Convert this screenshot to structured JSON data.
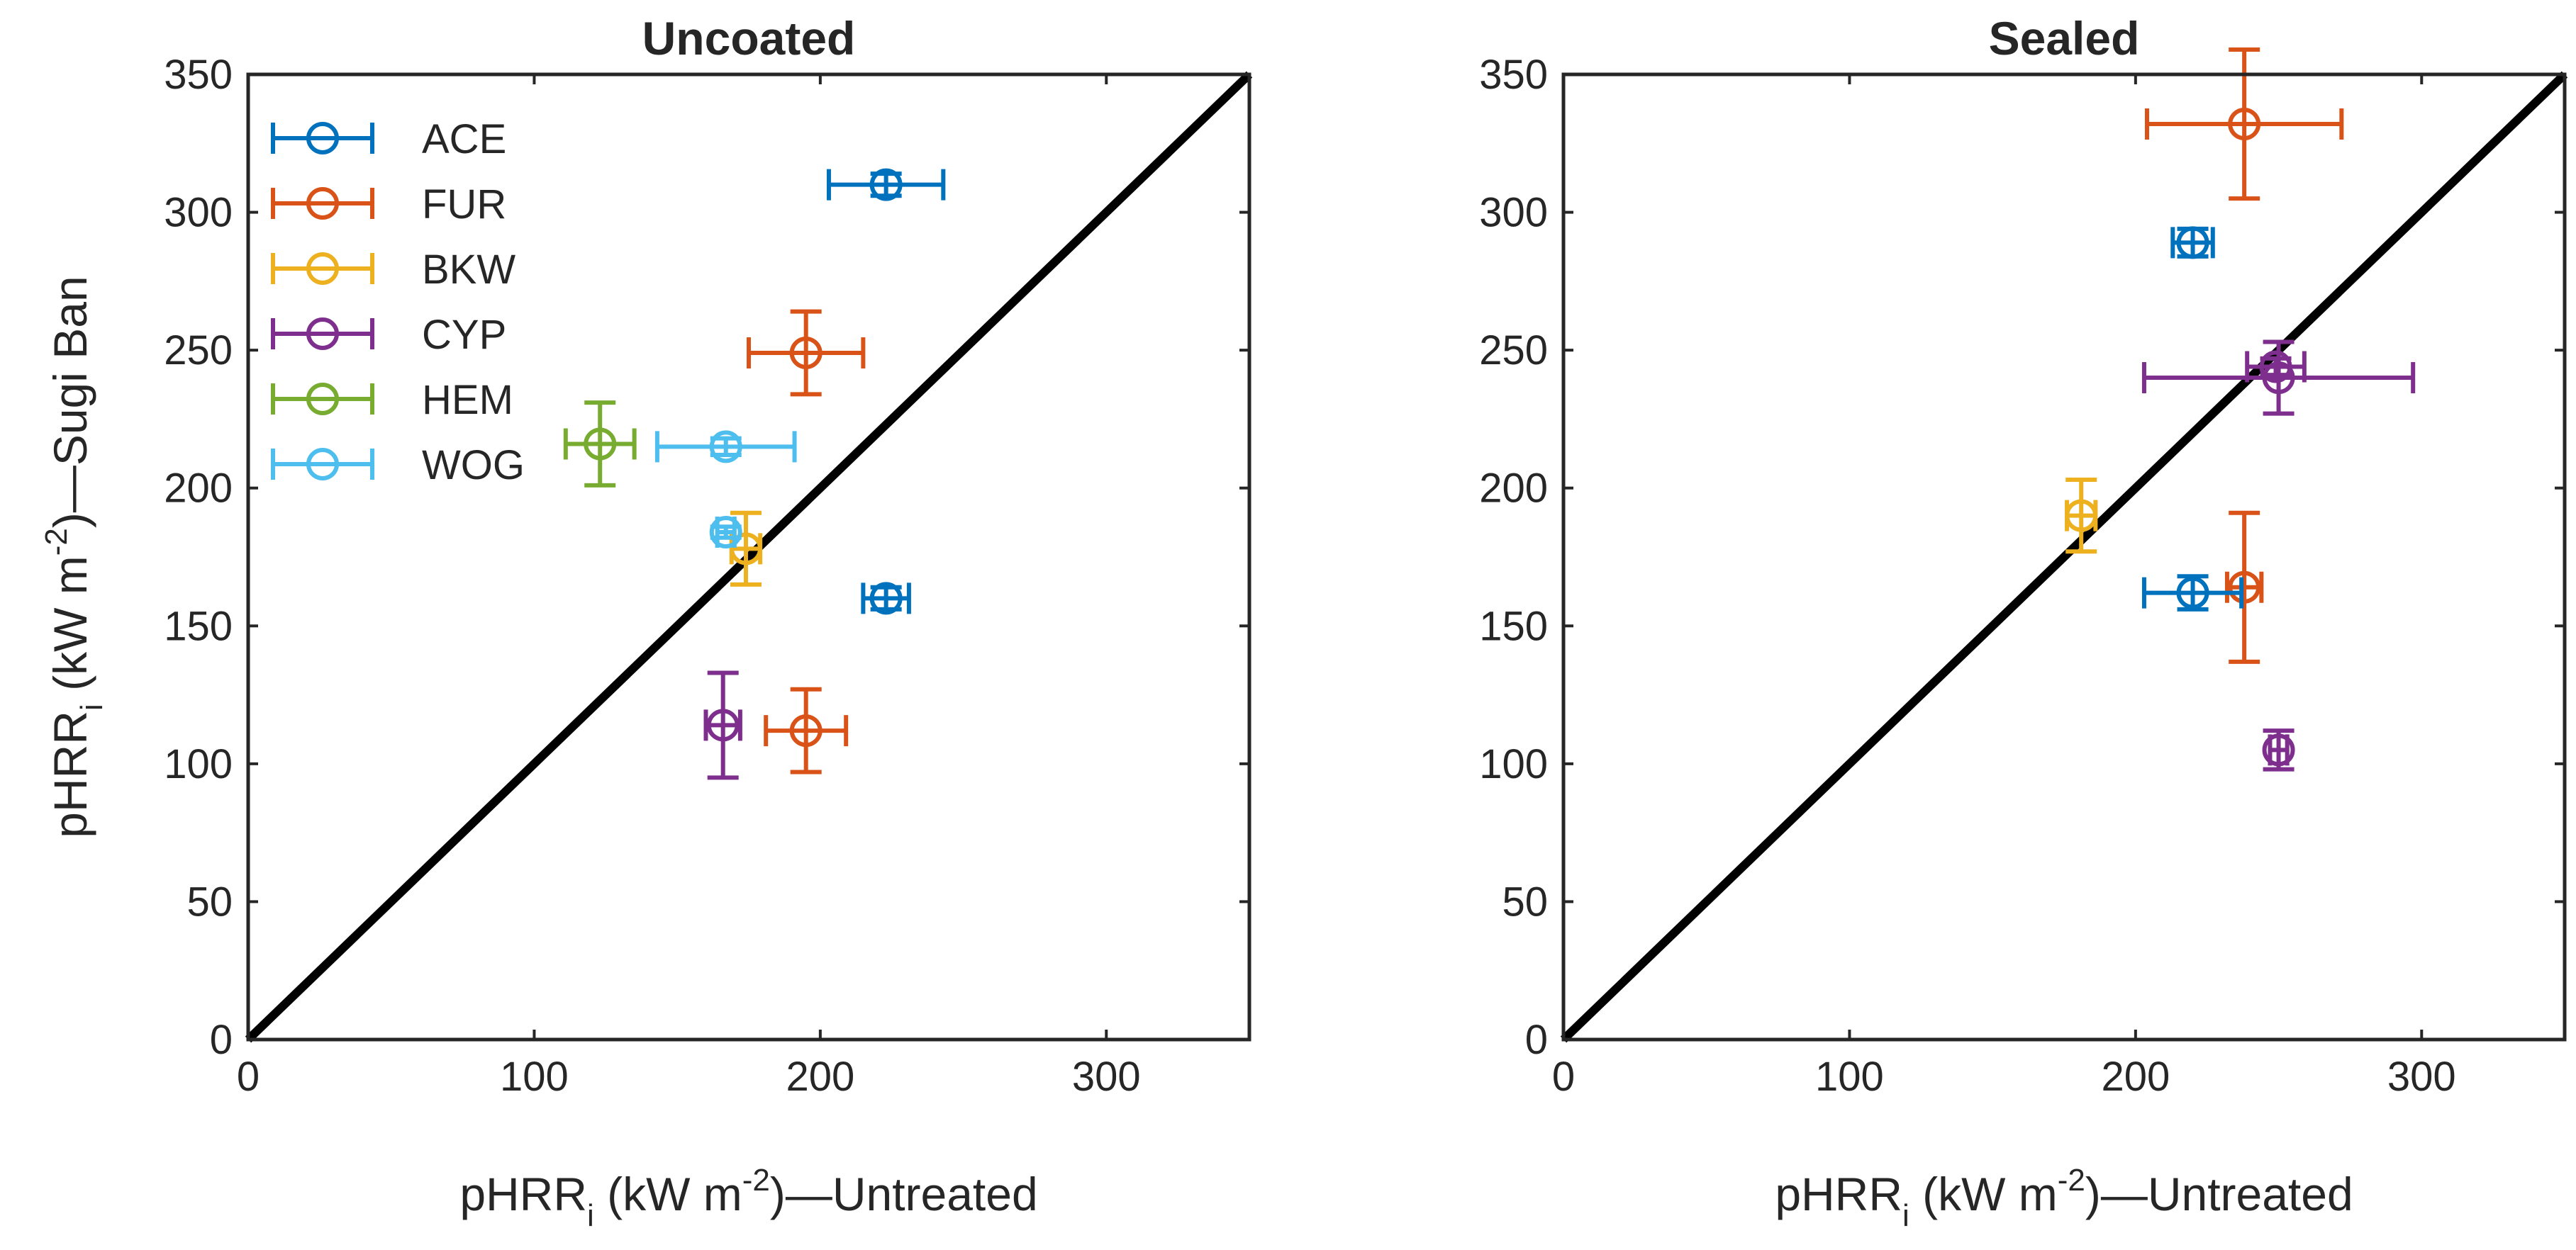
{
  "series_colors": {
    "ACE": "#0072BD",
    "FUR": "#D95319",
    "BKW": "#EDB120",
    "CYP": "#7E2F8E",
    "HEM": "#77AC30",
    "WOG": "#4DBEEE"
  },
  "chart_data": [
    {
      "type": "scatter",
      "title": "Uncoated",
      "xlabel": {
        "main": "pHRR",
        "sub": "i",
        "rest1": " (kW m",
        "sup": "-2",
        "rest2": ")—Untreated"
      },
      "ylabel": {
        "main": "pHRR",
        "sub": "i",
        "rest1": " (kW m",
        "sup": "-2",
        "rest2": ")—Sugi Ban"
      },
      "xlim": [
        0,
        350
      ],
      "ylim": [
        0,
        350
      ],
      "xticks": [
        0,
        100,
        200,
        300
      ],
      "yticks": [
        0,
        50,
        100,
        150,
        200,
        250,
        300,
        350
      ],
      "reference_line": "y = x",
      "legend": {
        "location": "top-left",
        "entries": [
          "ACE",
          "FUR",
          "BKW",
          "CYP",
          "HEM",
          "WOG"
        ]
      },
      "series": [
        {
          "name": "ACE",
          "points": [
            {
              "x": 223,
              "y": 310,
              "xerr": 20,
              "yerr": 4
            },
            {
              "x": 223,
              "y": 160,
              "xerr": 8,
              "yerr": 4
            }
          ]
        },
        {
          "name": "FUR",
          "points": [
            {
              "x": 195,
              "y": 249,
              "xerr": 20,
              "yerr": 15
            },
            {
              "x": 195,
              "y": 112,
              "xerr": 14,
              "yerr": 15
            }
          ]
        },
        {
          "name": "BKW",
          "points": [
            {
              "x": 174,
              "y": 178,
              "xerr": 5,
              "yerr": 13
            }
          ]
        },
        {
          "name": "CYP",
          "points": [
            {
              "x": 166,
              "y": 114,
              "xerr": 6,
              "yerr": 19
            }
          ]
        },
        {
          "name": "HEM",
          "points": [
            {
              "x": 123,
              "y": 216,
              "xerr": 12,
              "yerr": 15
            }
          ]
        },
        {
          "name": "WOG",
          "points": [
            {
              "x": 167,
              "y": 215,
              "xerr": 24,
              "yerr": 3
            },
            {
              "x": 167,
              "y": 184,
              "xerr": 3,
              "yerr": 2
            }
          ]
        }
      ]
    },
    {
      "type": "scatter",
      "title": "Sealed",
      "xlabel": {
        "main": "pHRR",
        "sub": "i",
        "rest1": " (kW m",
        "sup": "-2",
        "rest2": ")—Untreated"
      },
      "ylabel": null,
      "xlim": [
        0,
        350
      ],
      "ylim": [
        0,
        350
      ],
      "xticks": [
        0,
        100,
        200,
        300
      ],
      "yticks": [
        0,
        50,
        100,
        150,
        200,
        250,
        300,
        350
      ],
      "reference_line": "y = x",
      "legend": null,
      "series": [
        {
          "name": "FUR",
          "points": [
            {
              "x": 238,
              "y": 332,
              "xerr": 34,
              "yerr": 27
            },
            {
              "x": 238,
              "y": 164,
              "xerr": 6,
              "yerr": 27
            }
          ]
        },
        {
          "name": "ACE",
          "points": [
            {
              "x": 220,
              "y": 289,
              "xerr": 7,
              "yerr": 5
            },
            {
              "x": 220,
              "y": 162,
              "xerr": 17,
              "yerr": 6
            }
          ]
        },
        {
          "name": "CYP",
          "points": [
            {
              "x": 250,
              "y": 240,
              "xerr": 47,
              "yerr": 13
            },
            {
              "x": 249,
              "y": 244,
              "xerr": 10,
              "yerr": 3
            },
            {
              "x": 250,
              "y": 105,
              "xerr": 3,
              "yerr": 7
            }
          ]
        },
        {
          "name": "BKW",
          "points": [
            {
              "x": 181,
              "y": 190,
              "xerr": 5,
              "yerr": 13
            }
          ]
        }
      ]
    }
  ]
}
